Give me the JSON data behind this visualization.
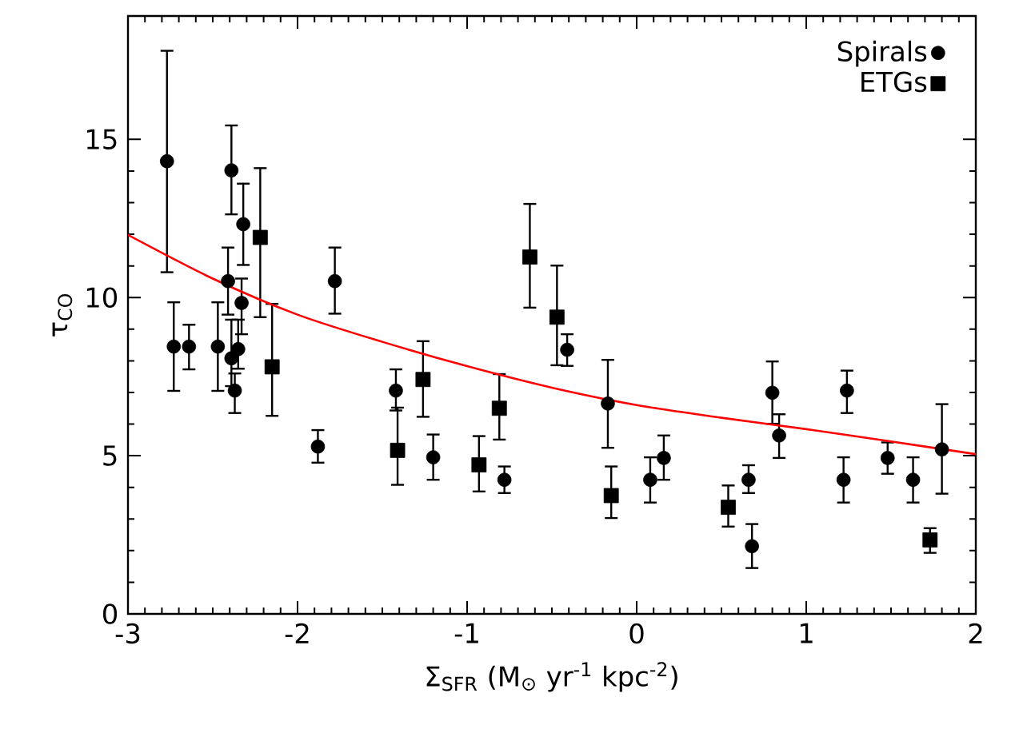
{
  "chart_data": {
    "type": "scatter",
    "xlabel": "Σ$_{SFR}$ (M$_{⊙}$ yr$^{-1}$ kpc$^{-2}$)",
    "ylabel": "τ$_{CO}$",
    "xlim": [
      -3,
      2
    ],
    "ylim": [
      0,
      18.9
    ],
    "xticks": [
      -3,
      -2,
      -1,
      0,
      1,
      2
    ],
    "yticks": [
      0,
      5,
      10,
      15
    ],
    "legend": "top right",
    "grid": false,
    "series": [
      {
        "name": "Spirals",
        "color": "#000000",
        "marker": "circle",
        "x": [
          -2.77,
          -2.39,
          -2.32,
          -2.41,
          -2.33,
          -1.78,
          -2.73,
          -2.64,
          -2.47,
          -2.39,
          -2.35,
          -2.37,
          -1.88,
          -1.42,
          -1.2,
          -0.78,
          -0.41,
          -0.17,
          0.08,
          0.16,
          0.66,
          0.68,
          0.8,
          0.84,
          1.24,
          1.22,
          1.48,
          1.63,
          1.8
        ],
        "values": [
          14.31,
          14.02,
          12.32,
          10.52,
          9.83,
          10.52,
          8.45,
          8.45,
          8.45,
          8.08,
          8.37,
          7.06,
          5.29,
          7.06,
          4.95,
          4.24,
          8.35,
          6.65,
          4.24,
          4.93,
          4.24,
          2.14,
          6.99,
          5.64,
          7.06,
          4.24,
          4.93,
          4.24,
          5.2
        ],
        "errors": [
          [
            10.8,
            17.8
          ],
          [
            12.63,
            15.44
          ],
          [
            11.03,
            13.6
          ],
          [
            9.46,
            11.58
          ],
          [
            8.84,
            10.6
          ],
          [
            9.49,
            11.58
          ],
          [
            7.05,
            9.85
          ],
          [
            7.73,
            9.14
          ],
          [
            7.05,
            9.85
          ],
          [
            7.2,
            9.3
          ],
          [
            7.75,
            9.3
          ],
          [
            6.35,
            7.6
          ],
          [
            4.78,
            5.81
          ],
          [
            6.43,
            7.73
          ],
          [
            4.24,
            5.67
          ],
          [
            3.82,
            4.66
          ],
          [
            7.84,
            8.84
          ],
          [
            5.25,
            8.03
          ],
          [
            3.52,
            4.95
          ],
          [
            4.24,
            5.64
          ],
          [
            3.82,
            4.7
          ],
          [
            1.45,
            2.84
          ],
          [
            6.01,
            7.98
          ],
          [
            4.93,
            6.31
          ],
          [
            6.35,
            7.69
          ],
          [
            3.52,
            4.95
          ],
          [
            4.43,
            5.42
          ],
          [
            3.52,
            4.95
          ],
          [
            3.8,
            6.63
          ]
        ]
      },
      {
        "name": "ETGs",
        "color": "#000000",
        "marker": "square",
        "x": [
          -2.22,
          -2.15,
          -0.63,
          -0.47,
          -1.41,
          -1.26,
          -0.93,
          -0.81,
          -0.15,
          0.54,
          1.73
        ],
        "values": [
          11.9,
          7.81,
          11.28,
          9.38,
          5.17,
          7.41,
          4.71,
          6.5,
          3.74,
          3.37,
          2.34
        ],
        "errors": [
          [
            9.38,
            14.09
          ],
          [
            6.26,
            9.8
          ],
          [
            9.68,
            12.96
          ],
          [
            7.86,
            11.01
          ],
          [
            4.08,
            6.52
          ],
          [
            6.23,
            8.62
          ],
          [
            3.87,
            5.62
          ],
          [
            5.51,
            7.58
          ],
          [
            3.03,
            4.66
          ],
          [
            2.76,
            4.06
          ],
          [
            1.93,
            2.71
          ]
        ]
      },
      {
        "type": "line",
        "color": "#ff0000",
        "marker": "none",
        "line_style": "solid",
        "x": [
          -3,
          -2.5,
          -2,
          -1.5,
          -1,
          -0.5,
          0,
          0.5,
          1,
          1.5,
          2
        ],
        "values": [
          11.98,
          10.6,
          9.46,
          8.6,
          7.83,
          7.15,
          6.6,
          6.2,
          5.84,
          5.45,
          5.05
        ]
      }
    ]
  }
}
